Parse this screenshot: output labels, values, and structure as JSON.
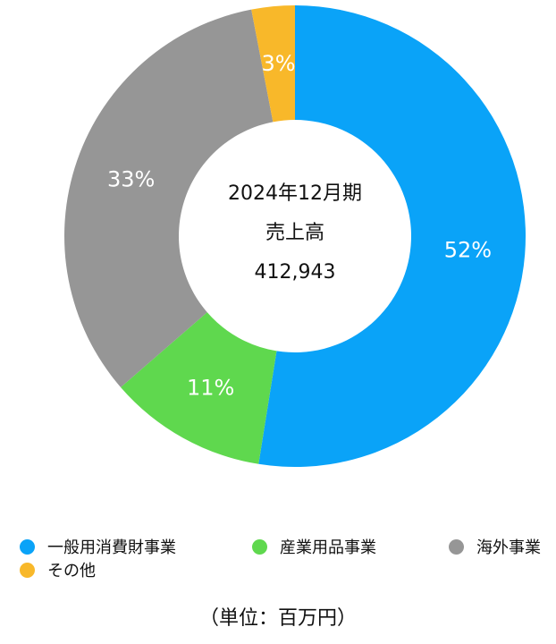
{
  "chart_data": {
    "type": "pie",
    "variant": "donut",
    "center": {
      "line1": "2024年12月期",
      "line2": "売上高",
      "line3": "412,943"
    },
    "categories": [
      "一般用消費財事業",
      "産業用品事業",
      "海外事業",
      "その他"
    ],
    "values": [
      52,
      11,
      33,
      3
    ],
    "labels": [
      "52%",
      "11%",
      "33%",
      "3%"
    ],
    "colors": [
      "#0aa3f8",
      "#5fd84e",
      "#969696",
      "#f8b82a"
    ],
    "legend": "bottom",
    "unit_note": "（単位：百万円）"
  }
}
